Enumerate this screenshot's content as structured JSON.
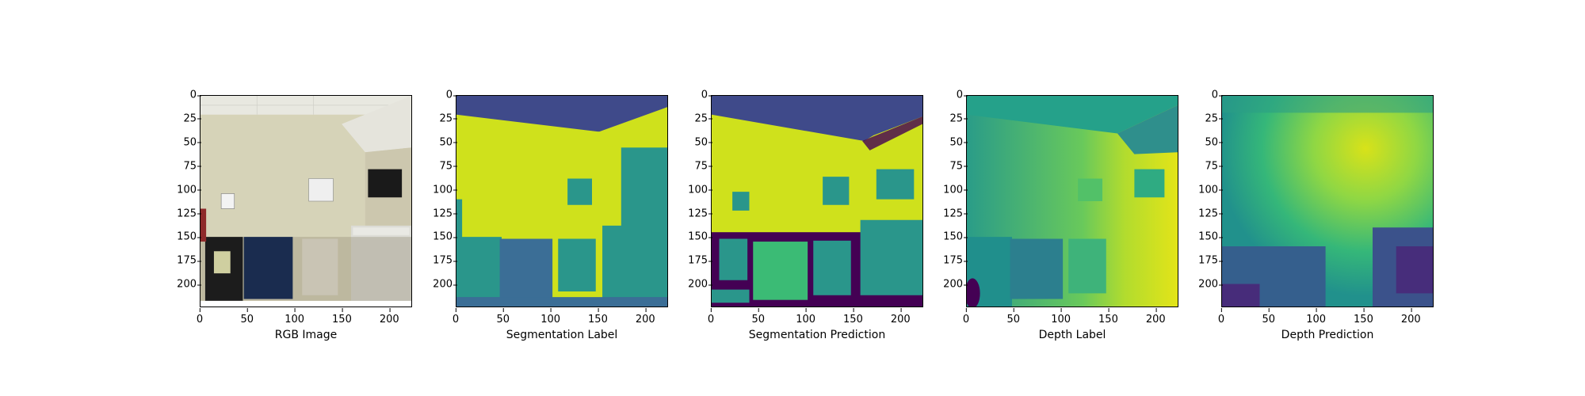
{
  "figure": {
    "panels": [
      {
        "id": "rgb",
        "xlabel": "RGB Image"
      },
      {
        "id": "seg_label",
        "xlabel": "Segmentation Label"
      },
      {
        "id": "seg_pred",
        "xlabel": "Segmentation Prediction"
      },
      {
        "id": "depth_label",
        "xlabel": "Depth Label"
      },
      {
        "id": "depth_pred",
        "xlabel": "Depth Prediction"
      }
    ],
    "yticks": [
      "0",
      "25",
      "50",
      "75",
      "100",
      "125",
      "150",
      "175",
      "200"
    ],
    "xticks": [
      "0",
      "50",
      "100",
      "150",
      "200"
    ],
    "colormap": "viridis",
    "colors": {
      "seg_ceiling": "#3f4a8a",
      "seg_wall": "#cfe11c",
      "seg_object": "#2a968b",
      "seg_furniture": "#3b6e96",
      "seg_dark": "#440154",
      "seg_green": "#3bbb75"
    }
  }
}
